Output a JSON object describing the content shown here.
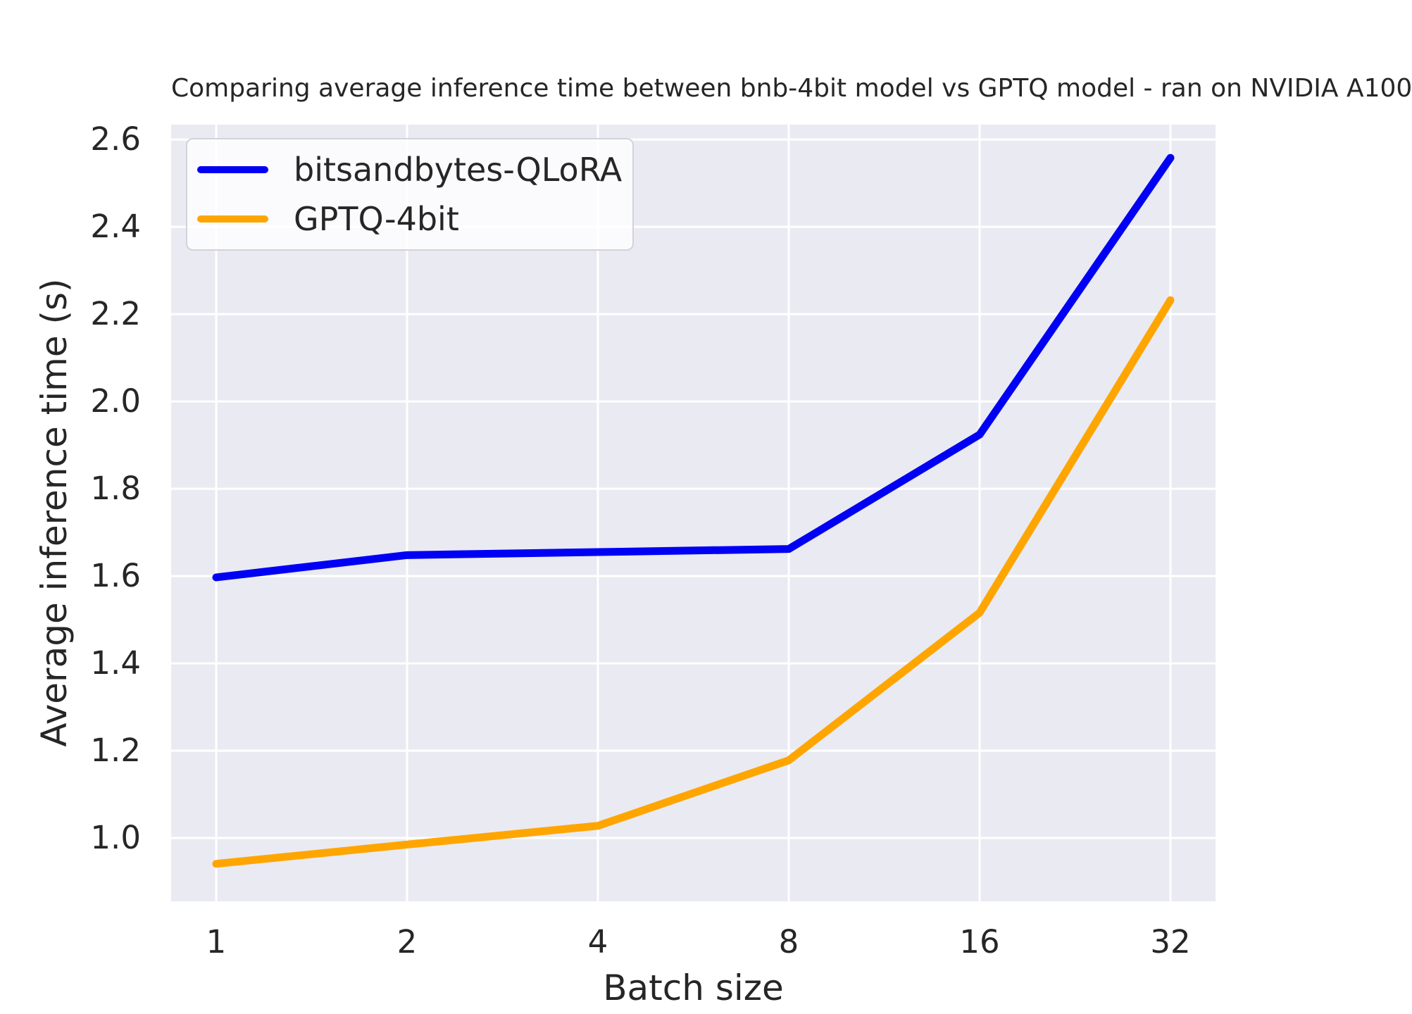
{
  "figure": {
    "background": "#ffffff"
  },
  "chart_data": {
    "type": "line",
    "title": "Comparing average inference time between bnb-4bit model vs GPTQ model - ran on NVIDIA A100",
    "xlabel": "Batch size",
    "ylabel": "Average inference time (s)",
    "categories": [
      1,
      2,
      4,
      8,
      16,
      32
    ],
    "series": [
      {
        "name": "bitsandbytes-QLoRA",
        "color": "#0000f5",
        "values": [
          1.597,
          1.648,
          1.655,
          1.662,
          1.924,
          2.558
        ]
      },
      {
        "name": "GPTQ-4bit",
        "color": "#ffa500",
        "values": [
          0.941,
          0.985,
          1.028,
          1.178,
          1.516,
          2.232
        ]
      }
    ],
    "yticks": [
      1.0,
      1.2,
      1.4,
      1.6,
      1.8,
      2.0,
      2.2,
      2.4,
      2.6
    ],
    "ylim": [
      0.855,
      2.634
    ],
    "grid": true,
    "legend_position": "upper left",
    "plot_background": "#eaeaf2",
    "grid_color": "#ffffff",
    "text_color": "#262626",
    "line_width": 11
  }
}
